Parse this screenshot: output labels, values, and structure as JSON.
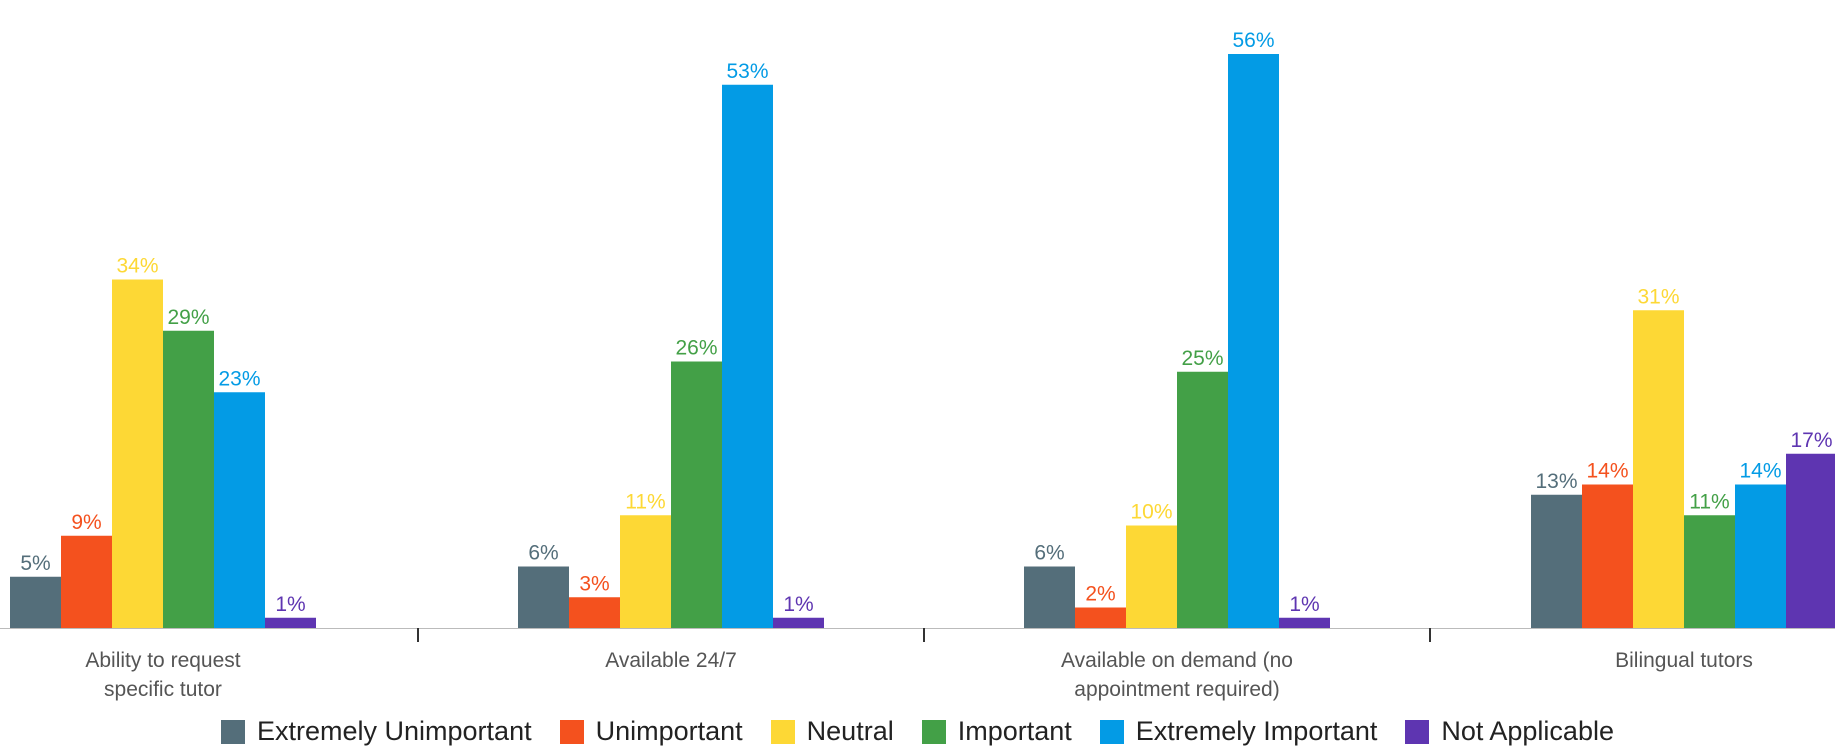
{
  "chart_data": {
    "type": "bar",
    "categories": [
      [
        "Ability to request",
        "specific tutor"
      ],
      [
        "Available 24/7"
      ],
      [
        "Available on demand (no",
        "appointment required)"
      ],
      [
        "Bilingual tutors"
      ]
    ],
    "series": [
      {
        "name": "Extremely Unimportant",
        "color": "#546e7a",
        "values": [
          5,
          6,
          6,
          13
        ],
        "labels": [
          "5%",
          "6%",
          "6%",
          "13%"
        ]
      },
      {
        "name": "Unimportant",
        "color": "#f4511e",
        "values": [
          9,
          3,
          2,
          14
        ],
        "labels": [
          "9%",
          "3%",
          "2%",
          "14%"
        ]
      },
      {
        "name": "Neutral",
        "color": "#fdd835",
        "values": [
          34,
          11,
          10,
          31
        ],
        "labels": [
          "34%",
          "11%",
          "10%",
          "31%"
        ]
      },
      {
        "name": "Important",
        "color": "#43a047",
        "values": [
          29,
          26,
          25,
          11
        ],
        "labels": [
          "29%",
          "26%",
          "25%",
          "11%"
        ]
      },
      {
        "name": "Extremely Important",
        "color": "#039be5",
        "values": [
          23,
          53,
          56,
          14
        ],
        "labels": [
          "23%",
          "53%",
          "56%",
          "14%"
        ]
      },
      {
        "name": "Not Applicable",
        "color": "#5e35b1",
        "values": [
          1,
          1,
          1,
          17
        ],
        "labels": [
          "1%",
          "1%",
          "1%",
          "17%"
        ]
      }
    ],
    "ylim": [
      0,
      60
    ],
    "grid": false,
    "legend_position": "bottom",
    "title": "",
    "xlabel": "",
    "ylabel": ""
  }
}
